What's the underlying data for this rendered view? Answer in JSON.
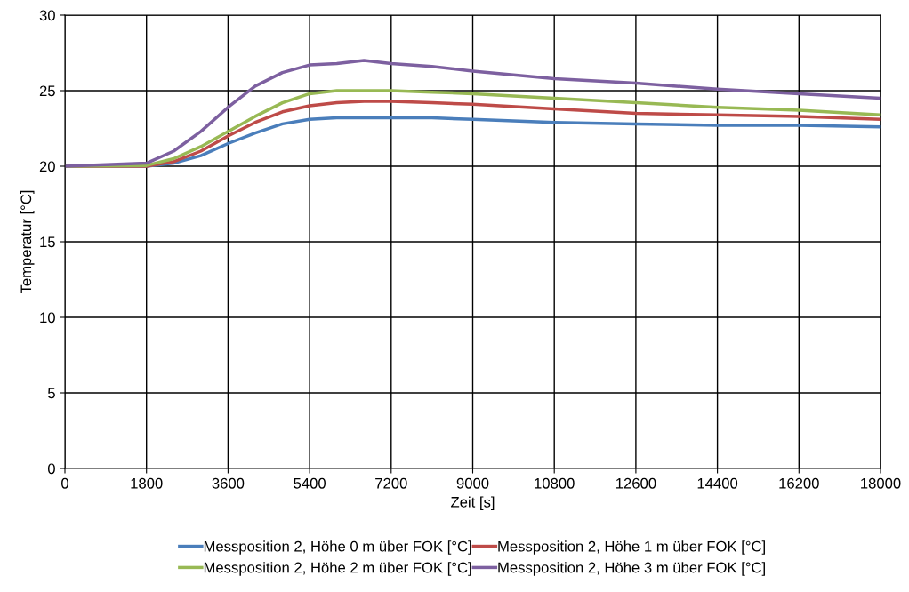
{
  "chart_data": {
    "type": "line",
    "xlabel": "Zeit [s]",
    "ylabel": "Temperatur [°C]",
    "x": [
      0,
      1800,
      2400,
      3000,
      3600,
      4200,
      4800,
      5400,
      6000,
      6600,
      7200,
      8100,
      9000,
      10800,
      12600,
      14400,
      16200,
      18000
    ],
    "series": [
      {
        "name": "Messposition 2, Höhe 0 m über FOK [°C]",
        "color": "#4a7ebb",
        "values": [
          20,
          20,
          20.2,
          20.7,
          21.5,
          22.2,
          22.8,
          23.1,
          23.2,
          23.2,
          23.2,
          23.2,
          23.1,
          22.9,
          22.8,
          22.7,
          22.7,
          22.6
        ]
      },
      {
        "name": "Messposition 2, Höhe 1 m über FOK [°C]",
        "color": "#be4b48",
        "values": [
          20,
          20,
          20.3,
          21.0,
          22.0,
          22.9,
          23.6,
          24.0,
          24.2,
          24.3,
          24.3,
          24.2,
          24.1,
          23.8,
          23.5,
          23.4,
          23.3,
          23.1
        ]
      },
      {
        "name": "Messposition 2, Höhe 2 m über FOK [°C]",
        "color": "#98b954",
        "values": [
          20,
          20.05,
          20.5,
          21.3,
          22.3,
          23.3,
          24.2,
          24.8,
          25.0,
          25.0,
          25.0,
          24.9,
          24.8,
          24.5,
          24.2,
          23.9,
          23.7,
          23.4
        ]
      },
      {
        "name": "Messposition 2, Höhe 3 m über FOK [°C]",
        "color": "#7d60a0",
        "values": [
          20,
          20.2,
          21.0,
          22.3,
          23.9,
          25.3,
          26.2,
          26.7,
          26.8,
          27.0,
          26.8,
          26.6,
          26.3,
          25.8,
          25.5,
          25.1,
          24.8,
          24.5
        ]
      }
    ],
    "xlim": [
      0,
      18000
    ],
    "xticks": [
      0,
      1800,
      3600,
      5400,
      7200,
      9000,
      10800,
      12600,
      14400,
      16200,
      18000
    ],
    "ylim": [
      0,
      30
    ],
    "yticks": [
      0,
      5,
      10,
      15,
      20,
      25,
      30
    ],
    "grid": true,
    "legend": "bottom",
    "marker": "none",
    "line_style": "solid"
  }
}
